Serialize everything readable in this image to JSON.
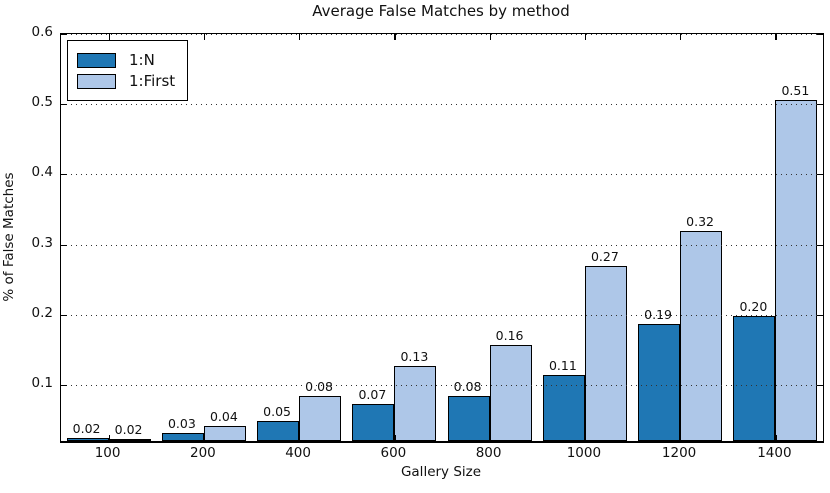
{
  "chart_data": {
    "type": "bar",
    "title": "Average False Matches by method",
    "xlabel": "Gallery Size",
    "ylabel": "% of False Matches",
    "categories": [
      "100",
      "200",
      "400",
      "600",
      "800",
      "1000",
      "1200",
      "1400"
    ],
    "series": [
      {
        "name": "1:N",
        "color": "#1f77b4",
        "values": [
          0.024,
          0.032,
          0.049,
          0.073,
          0.084,
          0.114,
          0.187,
          0.198
        ],
        "bar_labels": [
          "0.02",
          "0.03",
          "0.05",
          "0.07",
          "0.08",
          "0.11",
          "0.19",
          "0.20"
        ]
      },
      {
        "name": "1:First",
        "color": "#aec7e8",
        "values": [
          0.023,
          0.042,
          0.084,
          0.127,
          0.157,
          0.269,
          0.319,
          0.506
        ],
        "bar_labels": [
          "0.02",
          "0.04",
          "0.08",
          "0.13",
          "0.16",
          "0.27",
          "0.32",
          "0.51"
        ]
      }
    ],
    "ylim": [
      0.02,
      0.6
    ],
    "yticks": [
      0.1,
      0.2,
      0.3,
      0.4,
      0.5,
      0.6
    ],
    "ytick_labels": [
      "0.1",
      "0.2",
      "0.3",
      "0.4",
      "0.5",
      "0.6"
    ],
    "grid": "horizontal-dotted",
    "legend_position": "upper-left",
    "bar_edge_color": "#000000",
    "background": "#ffffff"
  }
}
